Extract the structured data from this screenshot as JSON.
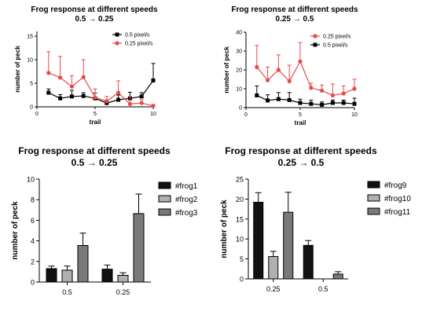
{
  "chart_data": [
    {
      "type": "line",
      "title_lines": [
        "Frog response at different speeds",
        "0.5 → 0.25"
      ],
      "xlabel": "trail",
      "ylabel": "number of peck",
      "xlim": [
        0,
        10
      ],
      "ylim": [
        0,
        16
      ],
      "xticks": [
        "0",
        "5",
        "10"
      ],
      "yticks": [
        "0",
        "5",
        "10",
        "15"
      ],
      "legend_position": "top-right",
      "x": [
        1,
        2,
        3,
        4,
        5,
        6,
        7,
        8,
        9,
        10
      ],
      "series": [
        {
          "name": "0.5 pixel/s",
          "color": "#000000",
          "marker": "square",
          "values": [
            3.0,
            1.8,
            2.2,
            2.3,
            1.8,
            0.8,
            1.5,
            1.8,
            2.2,
            5.6
          ],
          "err": [
            0.8,
            0.8,
            1.3,
            0.7,
            1.1,
            0.6,
            1.0,
            1.3,
            0.8,
            3.6
          ]
        },
        {
          "name": "0.25 pixel/s",
          "color": "#e84a4a",
          "marker": "circle",
          "values": [
            7.2,
            6.2,
            4.3,
            6.3,
            2.0,
            1.2,
            3.0,
            0.6,
            0.8,
            0.2
          ],
          "err": [
            4.5,
            4.5,
            2.3,
            3.7,
            1.8,
            1.0,
            2.5,
            1.6,
            0.7,
            0.3
          ]
        }
      ]
    },
    {
      "type": "line",
      "title_lines": [
        "Frog response at different speeds",
        "0.25 → 0.5"
      ],
      "xlabel": "trail",
      "ylabel": "number of peck",
      "xlim": [
        0,
        10
      ],
      "ylim": [
        0,
        40
      ],
      "xticks": [
        "0",
        "5",
        "10"
      ],
      "yticks": [
        "0",
        "10",
        "20",
        "30",
        "40"
      ],
      "legend_position": "top-right",
      "x": [
        1,
        2,
        3,
        4,
        5,
        6,
        7,
        8,
        9,
        10
      ],
      "series": [
        {
          "name": "0.25 pixel/s",
          "color": "#e84a4a",
          "marker": "circle",
          "values": [
            21.5,
            14.5,
            20.0,
            14.0,
            24.5,
            10.5,
            9.0,
            6.5,
            7.5,
            10.0
          ],
          "err": [
            11.5,
            7.0,
            8.0,
            8.5,
            10.0,
            2.5,
            3.0,
            6.0,
            4.0,
            5.0
          ]
        },
        {
          "name": "0.5 pixel/s",
          "color": "#000000",
          "marker": "square",
          "values": [
            6.5,
            3.8,
            4.5,
            4.0,
            2.5,
            2.0,
            1.5,
            2.5,
            2.5,
            2.0
          ],
          "err": [
            5.0,
            3.0,
            3.5,
            4.0,
            2.0,
            2.0,
            1.5,
            1.5,
            1.5,
            3.0
          ]
        }
      ]
    },
    {
      "type": "bar",
      "title_lines": [
        "Frog response at different speeds",
        "0.5 → 0.25"
      ],
      "xlabel": "",
      "ylabel": "number of peck",
      "ylim": [
        0,
        10
      ],
      "yticks": [
        "0",
        "2",
        "4",
        "6",
        "8",
        "10"
      ],
      "categories": [
        "0.5",
        "0.25"
      ],
      "legend_position": "right",
      "series": [
        {
          "name": "#frog1",
          "color": "#111111",
          "values": [
            1.3,
            1.25
          ],
          "err": [
            0.25,
            0.4
          ]
        },
        {
          "name": "#frog2",
          "color": "#b0b0b0",
          "values": [
            1.15,
            0.65
          ],
          "err": [
            0.4,
            0.25
          ]
        },
        {
          "name": "#frog3",
          "color": "#7a7a7a",
          "values": [
            3.55,
            6.65
          ],
          "err": [
            1.2,
            1.9
          ]
        }
      ]
    },
    {
      "type": "bar",
      "title_lines": [
        "Frog response at different speeds",
        "0.25 → 0.5"
      ],
      "xlabel": "",
      "ylabel": "number of peck",
      "ylim": [
        0,
        25
      ],
      "yticks": [
        "0",
        "5",
        "10",
        "15",
        "20",
        "25"
      ],
      "categories": [
        "0.25",
        "0.5"
      ],
      "legend_position": "right",
      "series": [
        {
          "name": "#frog9",
          "color": "#111111",
          "values": [
            19.2,
            8.4
          ],
          "err": [
            2.4,
            1.2
          ]
        },
        {
          "name": "#frog10",
          "color": "#b0b0b0",
          "values": [
            5.6,
            0
          ],
          "err": [
            1.3,
            0
          ]
        },
        {
          "name": "#frog11",
          "color": "#7a7a7a",
          "values": [
            16.7,
            1.2
          ],
          "err": [
            5.0,
            0.6
          ]
        }
      ]
    }
  ]
}
